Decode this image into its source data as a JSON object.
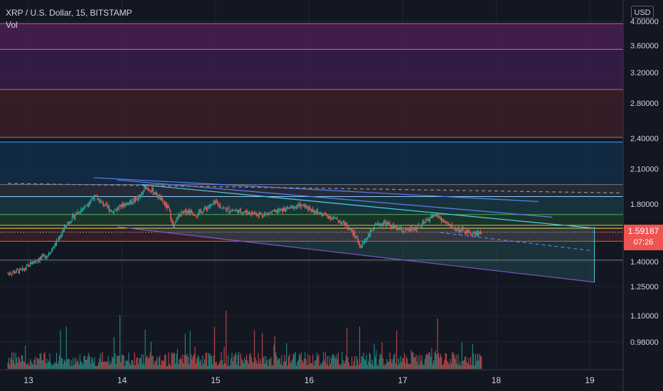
{
  "header": {
    "symbol_title": "XRP / U.S. Dollar, 15, BITSTAMP",
    "volume_label": "Vol",
    "currency_button": "USD"
  },
  "last_price": {
    "value": "1.59187",
    "countdown": "07:26",
    "price": 1.59187
  },
  "chart_data": {
    "type": "candlestick",
    "symbol": "XRP / U.S. Dollar",
    "interval": "15",
    "exchange": "BITSTAMP",
    "scale": "log",
    "x_ticks": [
      "13",
      "14",
      "15",
      "16",
      "17",
      "18",
      "19"
    ],
    "x_range": [
      12.78,
      19.32
    ],
    "y_ticks": [
      "4.00000",
      "3.60000",
      "3.20000",
      "2.80000",
      "2.40000",
      "2.10000",
      "1.80000",
      "1.40000",
      "1.25000",
      "1.10000",
      "0.98000"
    ],
    "y_ticks_values": [
      4.0,
      3.6,
      3.2,
      2.8,
      2.4,
      2.1,
      1.8,
      1.4,
      1.25,
      1.1,
      0.98
    ],
    "price_path": [
      [
        12.78,
        1.33
      ],
      [
        12.95,
        1.35
      ],
      [
        13.05,
        1.4
      ],
      [
        13.2,
        1.44
      ],
      [
        13.3,
        1.52
      ],
      [
        13.4,
        1.64
      ],
      [
        13.5,
        1.72
      ],
      [
        13.6,
        1.78
      ],
      [
        13.7,
        1.86
      ],
      [
        13.8,
        1.8
      ],
      [
        13.9,
        1.74
      ],
      [
        14.0,
        1.79
      ],
      [
        14.1,
        1.82
      ],
      [
        14.2,
        1.86
      ],
      [
        14.25,
        1.94
      ],
      [
        14.32,
        1.91
      ],
      [
        14.4,
        1.85
      ],
      [
        14.5,
        1.76
      ],
      [
        14.55,
        1.62
      ],
      [
        14.6,
        1.71
      ],
      [
        14.7,
        1.75
      ],
      [
        14.8,
        1.72
      ],
      [
        14.9,
        1.77
      ],
      [
        15.0,
        1.81
      ],
      [
        15.1,
        1.76
      ],
      [
        15.3,
        1.74
      ],
      [
        15.5,
        1.72
      ],
      [
        15.7,
        1.75
      ],
      [
        15.9,
        1.79
      ],
      [
        16.0,
        1.77
      ],
      [
        16.1,
        1.73
      ],
      [
        16.2,
        1.71
      ],
      [
        16.3,
        1.68
      ],
      [
        16.4,
        1.64
      ],
      [
        16.5,
        1.56
      ],
      [
        16.55,
        1.49
      ],
      [
        16.62,
        1.56
      ],
      [
        16.7,
        1.63
      ],
      [
        16.8,
        1.66
      ],
      [
        16.9,
        1.63
      ],
      [
        17.0,
        1.6
      ],
      [
        17.1,
        1.61
      ],
      [
        17.2,
        1.64
      ],
      [
        17.3,
        1.7
      ],
      [
        17.35,
        1.72
      ],
      [
        17.45,
        1.66
      ],
      [
        17.55,
        1.62
      ],
      [
        17.65,
        1.6
      ],
      [
        17.75,
        1.58
      ],
      [
        17.85,
        1.59187
      ]
    ],
    "zones": [
      {
        "from": 3.54,
        "to": 3.96,
        "color": "#4a1f56"
      },
      {
        "from": 2.97,
        "to": 3.54,
        "color": "#3a1d4a"
      },
      {
        "from": 2.41,
        "to": 2.97,
        "color": "#3c1e28"
      },
      {
        "from": 1.96,
        "to": 2.36,
        "color": "#132d48"
      },
      {
        "from": 1.86,
        "to": 1.96,
        "color": "#2a2e39"
      },
      {
        "from": 1.72,
        "to": 1.86,
        "color": "#173841"
      },
      {
        "from": 1.64,
        "to": 1.72,
        "color": "#1d3a2c"
      },
      {
        "from": 1.53,
        "to": 1.62,
        "color": "#3b1f28"
      }
    ],
    "levels": [
      {
        "value": 3.96,
        "color": "#ef5350"
      },
      {
        "value": 3.54,
        "color": "#ba68c8"
      },
      {
        "value": 2.97,
        "color": "#ef5350"
      },
      {
        "value": 2.41,
        "color": "#787b86"
      },
      {
        "value": 2.36,
        "color": "#42a5f5"
      },
      {
        "value": 1.96,
        "color": "#787b86"
      },
      {
        "value": 1.86,
        "color": "#90caf9"
      },
      {
        "value": 1.72,
        "color": "#4caf50"
      },
      {
        "value": 1.64,
        "color": "#cddc39"
      },
      {
        "value": 1.62,
        "color": "#ffeb3b"
      },
      {
        "value": 1.53,
        "color": "#ef5350"
      },
      {
        "value": 1.41,
        "color": "#787b86"
      }
    ],
    "dashed_levels": [
      {
        "value": 1.59187,
        "color": "#9598a1"
      }
    ],
    "trendlines": [
      {
        "p1": [
          13.7,
          2.02
        ],
        "p2": [
          18.45,
          1.82
        ],
        "color": "#5b7ff0"
      },
      {
        "p1": [
          13.95,
          2.0
        ],
        "p2": [
          18.6,
          1.7
        ],
        "color": "#5b7ff0"
      },
      {
        "p1": [
          14.2,
          1.96
        ],
        "p2": [
          19.05,
          1.62
        ],
        "color": "#4dd0e1"
      },
      {
        "p1": [
          12.78,
          1.97
        ],
        "p2": [
          19.32,
          1.89
        ],
        "color": "#8f93a0",
        "dashed": true
      },
      {
        "p1": [
          17.4,
          1.59
        ],
        "p2": [
          19.0,
          1.47
        ],
        "color": "#5b7ff0",
        "dashed": true
      }
    ],
    "channel": {
      "top": [
        [
          13.95,
          1.63
        ],
        [
          19.05,
          1.63
        ]
      ],
      "bottom": [
        [
          13.95,
          1.63
        ],
        [
          19.05,
          1.28
        ]
      ],
      "fill": "rgba(60,150,150,0.22)",
      "color": "#7e57c2"
    },
    "volume_max": 1.0,
    "volume_colors": {
      "up": "#26a69a",
      "down": "#ef5350"
    }
  }
}
